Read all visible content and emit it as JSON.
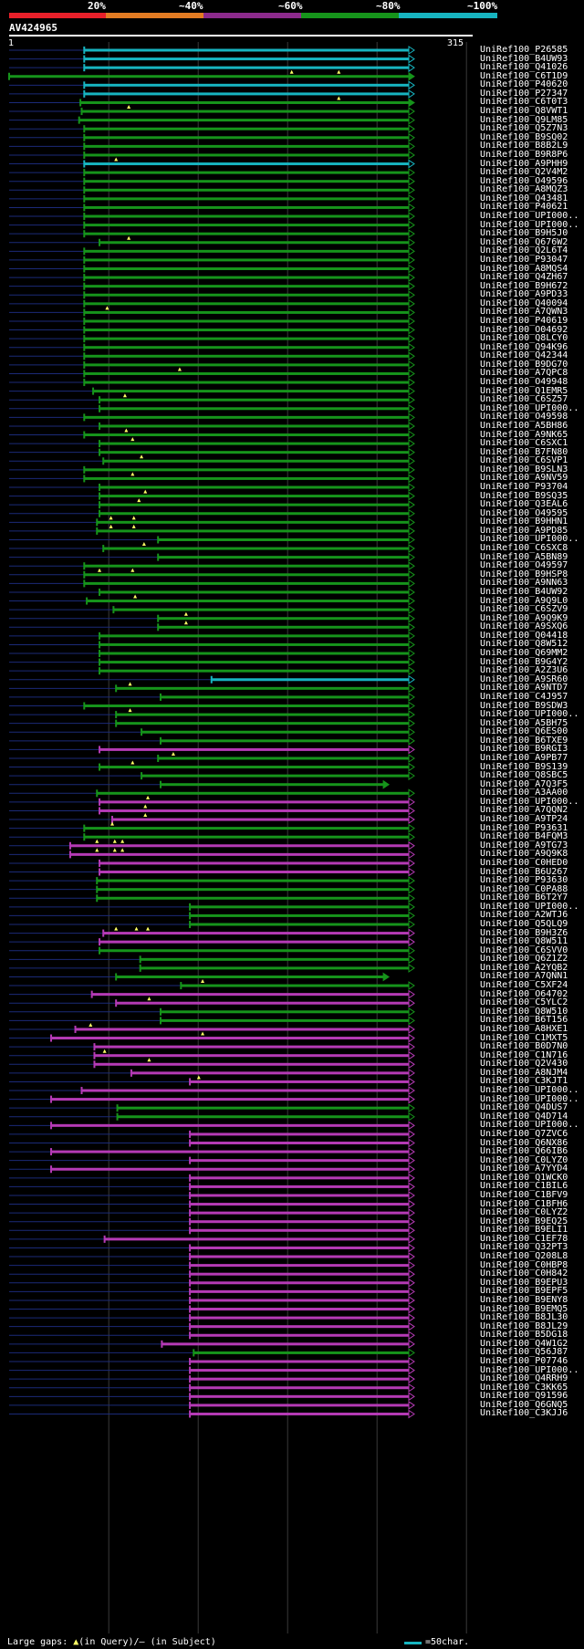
{
  "identity_scale": [
    {
      "label": "20%",
      "color": "#e8202a"
    },
    {
      "label": "~40%",
      "color": "#e37c23"
    },
    {
      "label": "~60%",
      "color": "#8c2a8c"
    },
    {
      "label": "~80%",
      "color": "#16941b"
    },
    {
      "label": "~100%",
      "color": "#17b4c0"
    }
  ],
  "query": {
    "id": "AV424965",
    "start": "1",
    "end": "315"
  },
  "colors": {
    "cyan": "#17b4c0",
    "green": "#16941b",
    "magenta": "#b53ab5",
    "navy": "#1b2a78",
    "gridline": "#3a3a3a"
  },
  "hits": [
    {
      "id": "UniRef100_P26585",
      "c": "cyan",
      "s": 60,
      "e": 315,
      "k": "A"
    },
    {
      "id": "UniRef100_B4UW93",
      "c": "cyan",
      "s": 60,
      "e": 315,
      "k": "A"
    },
    {
      "id": "UniRef100_Q41026",
      "c": "cyan",
      "s": 60,
      "e": 315,
      "k": "A"
    },
    {
      "id": "UniRef100_C6T1D9",
      "c": "green",
      "s": 1,
      "e": 315,
      "k": "F",
      "g": [
        223,
        260
      ]
    },
    {
      "id": "UniRef100_P40620",
      "c": "cyan",
      "s": 60,
      "e": 315,
      "k": "A"
    },
    {
      "id": "UniRef100_P27347",
      "c": "cyan",
      "s": 60,
      "e": 315,
      "k": "A"
    },
    {
      "id": "UniRef100_C6T0T3",
      "c": "green",
      "s": 57,
      "e": 315,
      "k": "F",
      "g": [
        260
      ]
    },
    {
      "id": "UniRef100_Q8VWT1",
      "c": "green",
      "s": 58,
      "e": 315,
      "k": "A",
      "g": [
        95
      ]
    },
    {
      "id": "UniRef100_Q9LM85",
      "c": "green",
      "s": 56,
      "e": 315,
      "k": "A"
    },
    {
      "id": "UniRef100_Q5Z7N3",
      "c": "green",
      "s": 60,
      "e": 315,
      "k": "A"
    },
    {
      "id": "UniRef100_B9SQ02",
      "c": "green",
      "s": 60,
      "e": 315,
      "k": "A"
    },
    {
      "id": "UniRef100_B8B2L9",
      "c": "green",
      "s": 60,
      "e": 315,
      "k": "A"
    },
    {
      "id": "UniRef100_B9R8P6",
      "c": "green",
      "s": 60,
      "e": 315,
      "k": "A"
    },
    {
      "id": "UniRef100_A9PHH9",
      "c": "cyan",
      "s": 60,
      "e": 315,
      "k": "A",
      "g": [
        85
      ]
    },
    {
      "id": "UniRef100_Q2V4M2",
      "c": "green",
      "s": 60,
      "e": 315,
      "k": "A"
    },
    {
      "id": "UniRef100_O49596",
      "c": "green",
      "s": 60,
      "e": 315,
      "k": "A"
    },
    {
      "id": "UniRef100_A8MQZ3",
      "c": "green",
      "s": 60,
      "e": 315,
      "k": "A"
    },
    {
      "id": "UniRef100_Q43481",
      "c": "green",
      "s": 60,
      "e": 315,
      "k": "A"
    },
    {
      "id": "UniRef100_P40621",
      "c": "green",
      "s": 60,
      "e": 315,
      "k": "A"
    },
    {
      "id": "UniRef100_UPI000..",
      "c": "green",
      "s": 60,
      "e": 315,
      "k": "A"
    },
    {
      "id": "UniRef100_UPI000..",
      "c": "green",
      "s": 60,
      "e": 315,
      "k": "A"
    },
    {
      "id": "UniRef100_B9H5J0",
      "c": "green",
      "s": 60,
      "e": 315,
      "k": "A"
    },
    {
      "id": "UniRef100_Q676W2",
      "c": "green",
      "s": 72,
      "e": 315,
      "k": "A",
      "g": [
        95
      ]
    },
    {
      "id": "UniRef100_Q2L6T4",
      "c": "green",
      "s": 60,
      "e": 315,
      "k": "A"
    },
    {
      "id": "UniRef100_P93047",
      "c": "green",
      "s": 60,
      "e": 315,
      "k": "A"
    },
    {
      "id": "UniRef100_A8MQS4",
      "c": "green",
      "s": 60,
      "e": 315,
      "k": "A"
    },
    {
      "id": "UniRef100_Q4ZH67",
      "c": "green",
      "s": 60,
      "e": 315,
      "k": "A"
    },
    {
      "id": "UniRef100_B9H672",
      "c": "green",
      "s": 60,
      "e": 315,
      "k": "A"
    },
    {
      "id": "UniRef100_A9PD33",
      "c": "green",
      "s": 60,
      "e": 315,
      "k": "A"
    },
    {
      "id": "UniRef100_Q40094",
      "c": "green",
      "s": 60,
      "e": 315,
      "k": "A"
    },
    {
      "id": "UniRef100_A7QWN3",
      "c": "green",
      "s": 60,
      "e": 315,
      "k": "A",
      "g": [
        78
      ]
    },
    {
      "id": "UniRef100_P40619",
      "c": "green",
      "s": 60,
      "e": 315,
      "k": "A"
    },
    {
      "id": "UniRef100_O04692",
      "c": "green",
      "s": 60,
      "e": 315,
      "k": "A"
    },
    {
      "id": "UniRef100_Q8LCY0",
      "c": "green",
      "s": 60,
      "e": 315,
      "k": "A"
    },
    {
      "id": "UniRef100_Q94K96",
      "c": "green",
      "s": 60,
      "e": 315,
      "k": "A"
    },
    {
      "id": "UniRef100_Q42344",
      "c": "green",
      "s": 60,
      "e": 315,
      "k": "A"
    },
    {
      "id": "UniRef100_B9DG70",
      "c": "green",
      "s": 60,
      "e": 315,
      "k": "A"
    },
    {
      "id": "UniRef100_A7QPC8",
      "c": "green",
      "s": 60,
      "e": 315,
      "k": "A",
      "g": [
        135
      ]
    },
    {
      "id": "UniRef100_O49948",
      "c": "green",
      "s": 60,
      "e": 315,
      "k": "A"
    },
    {
      "id": "UniRef100_Q1EMR5",
      "c": "green",
      "s": 67,
      "e": 315,
      "k": "A"
    },
    {
      "id": "UniRef100_C6SZ57",
      "c": "green",
      "s": 72,
      "e": 315,
      "k": "A",
      "g": [
        92
      ]
    },
    {
      "id": "UniRef100_UPI000..",
      "c": "green",
      "s": 72,
      "e": 315,
      "k": "A"
    },
    {
      "id": "UniRef100_O49598",
      "c": "green",
      "s": 60,
      "e": 315,
      "k": "A"
    },
    {
      "id": "UniRef100_A5BH86",
      "c": "green",
      "s": 72,
      "e": 315,
      "k": "A"
    },
    {
      "id": "UniRef100_A9NK65",
      "c": "green",
      "s": 60,
      "e": 315,
      "k": "A",
      "g": [
        93
      ]
    },
    {
      "id": "UniRef100_C6SXC1",
      "c": "green",
      "s": 72,
      "e": 315,
      "k": "A",
      "g": [
        98
      ]
    },
    {
      "id": "UniRef100_B7FN80",
      "c": "green",
      "s": 72,
      "e": 315,
      "k": "A"
    },
    {
      "id": "UniRef100_C6SVP1",
      "c": "green",
      "s": 75,
      "e": 315,
      "k": "A",
      "g": [
        105
      ]
    },
    {
      "id": "UniRef100_B9SLN3",
      "c": "green",
      "s": 60,
      "e": 315,
      "k": "A"
    },
    {
      "id": "UniRef100_A9NV59",
      "c": "green",
      "s": 60,
      "e": 315,
      "k": "A",
      "g": [
        98
      ]
    },
    {
      "id": "UniRef100_P93704",
      "c": "green",
      "s": 72,
      "e": 315,
      "k": "A"
    },
    {
      "id": "UniRef100_B9SQ35",
      "c": "green",
      "s": 72,
      "e": 315,
      "k": "A",
      "g": [
        108
      ]
    },
    {
      "id": "UniRef100_Q3EAL6",
      "c": "green",
      "s": 72,
      "e": 315,
      "k": "A",
      "g": [
        103
      ]
    },
    {
      "id": "UniRef100_O49595",
      "c": "green",
      "s": 72,
      "e": 315,
      "k": "A"
    },
    {
      "id": "UniRef100_B9HHN1",
      "c": "green",
      "s": 70,
      "e": 315,
      "k": "A",
      "g": [
        81,
        99
      ]
    },
    {
      "id": "UniRef100_A9PD85",
      "c": "green",
      "s": 70,
      "e": 315,
      "k": "A",
      "g": [
        81,
        99
      ]
    },
    {
      "id": "UniRef100_UPI000..",
      "c": "green",
      "s": 118,
      "e": 315,
      "k": "A"
    },
    {
      "id": "UniRef100_C6SXC8",
      "c": "green",
      "s": 75,
      "e": 315,
      "k": "A",
      "g": [
        107
      ]
    },
    {
      "id": "UniRef100_A5BN89",
      "c": "green",
      "s": 118,
      "e": 315,
      "k": "A"
    },
    {
      "id": "UniRef100_O49597",
      "c": "green",
      "s": 60,
      "e": 315,
      "k": "A"
    },
    {
      "id": "UniRef100_B9HSP8",
      "c": "green",
      "s": 60,
      "e": 315,
      "k": "A",
      "g": [
        72,
        98
      ]
    },
    {
      "id": "UniRef100_A9NN63",
      "c": "green",
      "s": 60,
      "e": 315,
      "k": "A"
    },
    {
      "id": "UniRef100_B4UW92",
      "c": "green",
      "s": 72,
      "e": 315,
      "k": "A"
    },
    {
      "id": "UniRef100_A9Q9L0",
      "c": "green",
      "s": 62,
      "e": 315,
      "k": "A",
      "g": [
        100
      ]
    },
    {
      "id": "UniRef100_C6SZV9",
      "c": "green",
      "s": 83,
      "e": 315,
      "k": "A"
    },
    {
      "id": "UniRef100_A9Q9K9",
      "c": "green",
      "s": 118,
      "e": 315,
      "k": "A",
      "g": [
        140
      ]
    },
    {
      "id": "UniRef100_A9SXQ6",
      "c": "green",
      "s": 118,
      "e": 315,
      "k": "A",
      "g": [
        140
      ]
    },
    {
      "id": "UniRef100_Q04418",
      "c": "green",
      "s": 72,
      "e": 315,
      "k": "A"
    },
    {
      "id": "UniRef100_Q8W512",
      "c": "green",
      "s": 72,
      "e": 315,
      "k": "A"
    },
    {
      "id": "UniRef100_Q69MM2",
      "c": "green",
      "s": 72,
      "e": 315,
      "k": "A"
    },
    {
      "id": "UniRef100_B9G4Y2",
      "c": "green",
      "s": 72,
      "e": 315,
      "k": "A"
    },
    {
      "id": "UniRef100_A2Z3U6",
      "c": "green",
      "s": 72,
      "e": 315,
      "k": "A"
    },
    {
      "id": "UniRef100_A9SR60",
      "c": "cyan",
      "s": 160,
      "e": 315,
      "k": "A"
    },
    {
      "id": "UniRef100_A9NTD7",
      "c": "green",
      "s": 85,
      "e": 315,
      "k": "A",
      "g": [
        96
      ]
    },
    {
      "id": "UniRef100_C4J957",
      "c": "green",
      "s": 120,
      "e": 315,
      "k": "A"
    },
    {
      "id": "UniRef100_B9SDW3",
      "c": "green",
      "s": 60,
      "e": 315,
      "k": "A"
    },
    {
      "id": "UniRef100_UPI000..",
      "c": "green",
      "s": 85,
      "e": 315,
      "k": "A",
      "g": [
        96
      ]
    },
    {
      "id": "UniRef100_A5BH75",
      "c": "green",
      "s": 85,
      "e": 315,
      "k": "A"
    },
    {
      "id": "UniRef100_Q6ES00",
      "c": "green",
      "s": 105,
      "e": 315,
      "k": "A"
    },
    {
      "id": "UniRef100_B6TXE9",
      "c": "green",
      "s": 120,
      "e": 315,
      "k": "A"
    },
    {
      "id": "UniRef100_B9RGI3",
      "c": "magenta",
      "s": 72,
      "e": 315,
      "k": "A"
    },
    {
      "id": "UniRef100_A9PB77",
      "c": "green",
      "s": 118,
      "e": 315,
      "k": "A",
      "g": [
        130
      ]
    },
    {
      "id": "UniRef100_B9S139",
      "c": "green",
      "s": 72,
      "e": 315,
      "k": "A",
      "g": [
        98
      ]
    },
    {
      "id": "UniRef100_Q8SBC5",
      "c": "green",
      "s": 105,
      "e": 315,
      "k": "A"
    },
    {
      "id": "UniRef100_A7Q3F5",
      "c": "green",
      "s": 120,
      "e": 295,
      "k": "F"
    },
    {
      "id": "UniRef100_A3AA00",
      "c": "green",
      "s": 70,
      "e": 315,
      "k": "A"
    },
    {
      "id": "UniRef100_UPI000..",
      "c": "magenta",
      "s": 72,
      "e": 315,
      "k": "A",
      "g": [
        110
      ]
    },
    {
      "id": "UniRef100_A7QQN2",
      "c": "magenta",
      "s": 72,
      "e": 315,
      "k": "A",
      "g": [
        108
      ]
    },
    {
      "id": "UniRef100_A9TP24",
      "c": "magenta",
      "s": 82,
      "e": 315,
      "k": "A",
      "g": [
        108
      ]
    },
    {
      "id": "UniRef100_P93631",
      "c": "green",
      "s": 60,
      "e": 315,
      "k": "A",
      "g": [
        82
      ]
    },
    {
      "id": "UniRef100_B4FQM3",
      "c": "green",
      "s": 60,
      "e": 315,
      "k": "A"
    },
    {
      "id": "UniRef100_A9TG73",
      "c": "magenta",
      "s": 49,
      "e": 315,
      "k": "A",
      "g": [
        70,
        84,
        90
      ]
    },
    {
      "id": "UniRef100_A9Q9K8",
      "c": "magenta",
      "s": 49,
      "e": 315,
      "k": "A",
      "g": [
        70,
        84,
        90
      ]
    },
    {
      "id": "UniRef100_C0HED0",
      "c": "magenta",
      "s": 72,
      "e": 315,
      "k": "A"
    },
    {
      "id": "UniRef100_B6U267",
      "c": "magenta",
      "s": 72,
      "e": 315,
      "k": "A"
    },
    {
      "id": "UniRef100_P93630",
      "c": "green",
      "s": 70,
      "e": 315,
      "k": "A"
    },
    {
      "id": "UniRef100_C0PA88",
      "c": "green",
      "s": 70,
      "e": 315,
      "k": "A"
    },
    {
      "id": "UniRef100_B6T2Y7",
      "c": "green",
      "s": 70,
      "e": 315,
      "k": "A"
    },
    {
      "id": "UniRef100_UPI000..",
      "c": "green",
      "s": 143,
      "e": 315,
      "k": "A"
    },
    {
      "id": "UniRef100_A2WTJ6",
      "c": "green",
      "s": 143,
      "e": 315,
      "k": "A"
    },
    {
      "id": "UniRef100_Q5QLQ9",
      "c": "green",
      "s": 143,
      "e": 315,
      "k": "A"
    },
    {
      "id": "UniRef100_B9H3Z6",
      "c": "magenta",
      "s": 75,
      "e": 315,
      "k": "A",
      "g": [
        85,
        101,
        110
      ]
    },
    {
      "id": "UniRef100_Q8W511",
      "c": "magenta",
      "s": 72,
      "e": 315,
      "k": "A"
    },
    {
      "id": "UniRef100_C6SVV0",
      "c": "green",
      "s": 72,
      "e": 315,
      "k": "A"
    },
    {
      "id": "UniRef100_Q6Z1Z2",
      "c": "green",
      "s": 104,
      "e": 315,
      "k": "A"
    },
    {
      "id": "UniRef100_A2YQB2",
      "c": "green",
      "s": 104,
      "e": 315,
      "k": "A"
    },
    {
      "id": "UniRef100_A7QNN1",
      "c": "green",
      "s": 85,
      "e": 295,
      "k": "F"
    },
    {
      "id": "UniRef100_C5XF24",
      "c": "green",
      "s": 136,
      "e": 315,
      "k": "A",
      "g": [
        153
      ]
    },
    {
      "id": "UniRef100_O64702",
      "c": "magenta",
      "s": 66,
      "e": 315,
      "k": "A"
    },
    {
      "id": "UniRef100_C5YLC2",
      "c": "magenta",
      "s": 85,
      "e": 315,
      "k": "A",
      "g": [
        111
      ]
    },
    {
      "id": "UniRef100_Q8W510",
      "c": "green",
      "s": 120,
      "e": 315,
      "k": "A"
    },
    {
      "id": "UniRef100_B6T156",
      "c": "green",
      "s": 120,
      "e": 315,
      "k": "A"
    },
    {
      "id": "UniRef100_A8HXE1",
      "c": "magenta",
      "s": 53,
      "e": 315,
      "k": "A",
      "g": [
        65
      ]
    },
    {
      "id": "UniRef100_C1MXT5",
      "c": "magenta",
      "s": 34,
      "e": 315,
      "k": "A",
      "g": [
        153
      ]
    },
    {
      "id": "UniRef100_B0D7N0",
      "c": "magenta",
      "s": 68,
      "e": 315,
      "k": "A"
    },
    {
      "id": "UniRef100_C1N716",
      "c": "magenta",
      "s": 68,
      "e": 315,
      "k": "A",
      "g": [
        76
      ]
    },
    {
      "id": "UniRef100_Q2V430",
      "c": "magenta",
      "s": 68,
      "e": 315,
      "k": "A",
      "g": [
        111
      ]
    },
    {
      "id": "UniRef100_A8NJM4",
      "c": "magenta",
      "s": 97,
      "e": 315,
      "k": "A"
    },
    {
      "id": "UniRef100_C3KJT1",
      "c": "magenta",
      "s": 143,
      "e": 315,
      "k": "A",
      "g": [
        150
      ]
    },
    {
      "id": "UniRef100_UPI000..",
      "c": "magenta",
      "s": 58,
      "e": 315,
      "k": "A"
    },
    {
      "id": "UniRef100_UPI000..",
      "c": "magenta",
      "s": 34,
      "e": 315,
      "k": "A"
    },
    {
      "id": "UniRef100_Q4DUS7",
      "c": "green",
      "s": 86,
      "e": 315,
      "k": "A"
    },
    {
      "id": "UniRef100_Q4D714",
      "c": "green",
      "s": 86,
      "e": 315,
      "k": "A"
    },
    {
      "id": "UniRef100_UPI000..",
      "c": "magenta",
      "s": 34,
      "e": 315,
      "k": "A"
    },
    {
      "id": "UniRef100_Q7ZVC6",
      "c": "magenta",
      "s": 143,
      "e": 315,
      "k": "A"
    },
    {
      "id": "UniRef100_Q6NX86",
      "c": "magenta",
      "s": 143,
      "e": 315,
      "k": "A"
    },
    {
      "id": "UniRef100_Q66IB6",
      "c": "magenta",
      "s": 34,
      "e": 315,
      "k": "A"
    },
    {
      "id": "UniRef100_C0LYZ0",
      "c": "magenta",
      "s": 143,
      "e": 315,
      "k": "A"
    },
    {
      "id": "UniRef100_A7YYD4",
      "c": "magenta",
      "s": 34,
      "e": 315,
      "k": "A"
    },
    {
      "id": "UniRef100_Q1WCK0",
      "c": "magenta",
      "s": 143,
      "e": 315,
      "k": "A"
    },
    {
      "id": "UniRef100_C1BIL6",
      "c": "magenta",
      "s": 143,
      "e": 315,
      "k": "A"
    },
    {
      "id": "UniRef100_C1BFV9",
      "c": "magenta",
      "s": 143,
      "e": 315,
      "k": "A"
    },
    {
      "id": "UniRef100_C1BFH6",
      "c": "magenta",
      "s": 143,
      "e": 315,
      "k": "A"
    },
    {
      "id": "UniRef100_C0LYZ2",
      "c": "magenta",
      "s": 143,
      "e": 315,
      "k": "A"
    },
    {
      "id": "UniRef100_B9EQ25",
      "c": "magenta",
      "s": 143,
      "e": 315,
      "k": "A"
    },
    {
      "id": "UniRef100_B9ELI1",
      "c": "magenta",
      "s": 143,
      "e": 315,
      "k": "A"
    },
    {
      "id": "UniRef100_C1EF78",
      "c": "magenta",
      "s": 76,
      "e": 315,
      "k": "A"
    },
    {
      "id": "UniRef100_Q32PT3",
      "c": "magenta",
      "s": 143,
      "e": 315,
      "k": "A"
    },
    {
      "id": "UniRef100_Q208L8",
      "c": "magenta",
      "s": 143,
      "e": 315,
      "k": "A"
    },
    {
      "id": "UniRef100_C0HBP8",
      "c": "magenta",
      "s": 143,
      "e": 315,
      "k": "A"
    },
    {
      "id": "UniRef100_C0H842",
      "c": "magenta",
      "s": 143,
      "e": 315,
      "k": "A"
    },
    {
      "id": "UniRef100_B9EPU3",
      "c": "magenta",
      "s": 143,
      "e": 315,
      "k": "A"
    },
    {
      "id": "UniRef100_B9EPF5",
      "c": "magenta",
      "s": 143,
      "e": 315,
      "k": "A"
    },
    {
      "id": "UniRef100_B9ENY8",
      "c": "magenta",
      "s": 143,
      "e": 315,
      "k": "A"
    },
    {
      "id": "UniRef100_B9EMQ5",
      "c": "magenta",
      "s": 143,
      "e": 315,
      "k": "A"
    },
    {
      "id": "UniRef100_B8JL30",
      "c": "magenta",
      "s": 143,
      "e": 315,
      "k": "A"
    },
    {
      "id": "UniRef100_B8JL29",
      "c": "magenta",
      "s": 143,
      "e": 315,
      "k": "A"
    },
    {
      "id": "UniRef100_B5DG18",
      "c": "magenta",
      "s": 143,
      "e": 315,
      "k": "A"
    },
    {
      "id": "UniRef100_Q4W1G2",
      "c": "magenta",
      "s": 121,
      "e": 315,
      "k": "A"
    },
    {
      "id": "UniRef100_Q56J87",
      "c": "green",
      "s": 146,
      "e": 315,
      "k": "A"
    },
    {
      "id": "UniRef100_P07746",
      "c": "magenta",
      "s": 143,
      "e": 315,
      "k": "A"
    },
    {
      "id": "UniRef100_UPI000..",
      "c": "magenta",
      "s": 143,
      "e": 315,
      "k": "A"
    },
    {
      "id": "UniRef100_Q4RRH9",
      "c": "magenta",
      "s": 143,
      "e": 315,
      "k": "A"
    },
    {
      "id": "UniRef100_C3KK65",
      "c": "magenta",
      "s": 143,
      "e": 315,
      "k": "A"
    },
    {
      "id": "UniRef100_Q91596",
      "c": "magenta",
      "s": 143,
      "e": 315,
      "k": "A"
    },
    {
      "id": "UniRef100_Q6GNQ5",
      "c": "magenta",
      "s": 143,
      "e": 315,
      "k": "A"
    },
    {
      "id": "UniRef100_C3KJJ6",
      "c": "magenta",
      "s": 143,
      "e": 315,
      "k": "A"
    }
  ],
  "footer": {
    "large_gaps_label": "Large gaps:",
    "query_marker": "▲",
    "query_text": "(in Query)/",
    "subject_text": "— (in Subject)",
    "scale_text": "=50char."
  }
}
